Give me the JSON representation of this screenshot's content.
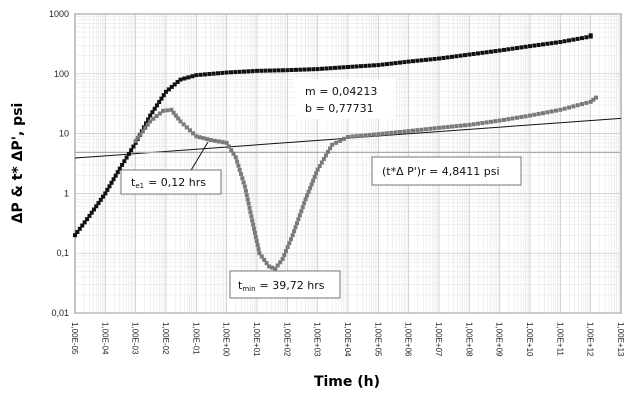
{
  "chart_data": {
    "type": "scatter",
    "log_x": true,
    "log_y": true,
    "xlabel": "Time (h)",
    "ylabel": "ΔP & t* ΔP', psi",
    "xlim": [
      1e-05,
      10000000000000.0
    ],
    "ylim": [
      0.01,
      1000
    ],
    "grid": true,
    "x_ticks": [
      "1,00E-05",
      "1,00E-04",
      "1,00E-03",
      "1,00E-02",
      "1,00E-01",
      "1,00E+00",
      "1,00E+01",
      "1,00E+02",
      "1,00E+03",
      "1,00E+04",
      "1,00E+05",
      "1,00E+06",
      "1,00E+07",
      "1,00E+08",
      "1,00E+09",
      "1,00E+10",
      "1,00E+11",
      "1,00E+12",
      "1,00E+13"
    ],
    "y_ticks": [
      "0,01",
      "0,1",
      "1",
      "10",
      "100",
      "1000"
    ],
    "series": [
      {
        "role": "pressure",
        "color": "#111111",
        "points": [
          [
            1e-05,
            0.2
          ],
          [
            3e-05,
            0.42
          ],
          [
            0.0001,
            1.0
          ],
          [
            0.0003,
            2.6
          ],
          [
            0.001,
            7.0
          ],
          [
            0.003,
            20
          ],
          [
            0.01,
            50
          ],
          [
            0.03,
            80
          ],
          [
            0.1,
            95
          ],
          [
            1,
            105
          ],
          [
            10,
            112
          ],
          [
            100,
            115
          ],
          [
            1000.0,
            120
          ],
          [
            10000.0,
            130
          ],
          [
            100000.0,
            140
          ],
          [
            1000000.0,
            160
          ],
          [
            10000000.0,
            180
          ],
          [
            100000000.0,
            210
          ],
          [
            1000000000.0,
            245
          ],
          [
            10000000000.0,
            290
          ],
          [
            100000000000.0,
            340
          ],
          [
            1000000000000.0,
            420
          ],
          [
            1000000000000.0,
            440
          ]
        ]
      },
      {
        "role": "derivative",
        "color": "#7a7a7a",
        "points": [
          [
            0.001,
            7.5
          ],
          [
            0.003,
            16
          ],
          [
            0.008,
            24
          ],
          [
            0.015,
            25
          ],
          [
            0.03,
            16
          ],
          [
            0.1,
            9
          ],
          [
            0.3,
            7.8
          ],
          [
            1,
            7.0
          ],
          [
            2,
            4.0
          ],
          [
            4,
            1.3
          ],
          [
            7,
            0.35
          ],
          [
            12,
            0.1
          ],
          [
            25,
            0.06
          ],
          [
            40,
            0.055
          ],
          [
            70,
            0.08
          ],
          [
            150,
            0.2
          ],
          [
            400,
            0.8
          ],
          [
            1000.0,
            2.5
          ],
          [
            3000.0,
            6.5
          ],
          [
            10000.0,
            8.8
          ],
          [
            100000.0,
            9.8
          ],
          [
            1000000.0,
            11
          ],
          [
            10000000.0,
            12.5
          ],
          [
            100000000.0,
            14
          ],
          [
            1000000000.0,
            16.5
          ],
          [
            10000000000.0,
            20
          ],
          [
            100000000000.0,
            25
          ],
          [
            1000000000000.0,
            34
          ],
          [
            1500000000000.0,
            40
          ]
        ]
      }
    ],
    "lines": [
      {
        "role": "slope-line",
        "color": "#111111",
        "from": [
          1e-05,
          3.9
        ],
        "to": [
          10000000000000.0,
          18
        ]
      },
      {
        "role": "radial-flow-line",
        "color": "#aaaaaa",
        "from": [
          1e-05,
          4.84
        ],
        "to": [
          10000000000000.0,
          4.84
        ]
      }
    ],
    "annotations": {
      "slope": {
        "line1": "m = 0,04213",
        "line2": "b = 0,77731"
      },
      "radial": "(t*Δ P')r = 4,8411 psi",
      "te1": {
        "prefix": "t",
        "sub": "e1",
        "value": "= 0,12 hrs"
      },
      "tmin": {
        "prefix": "t",
        "sub": "min",
        "value": "= 39,72 hrs"
      }
    }
  }
}
